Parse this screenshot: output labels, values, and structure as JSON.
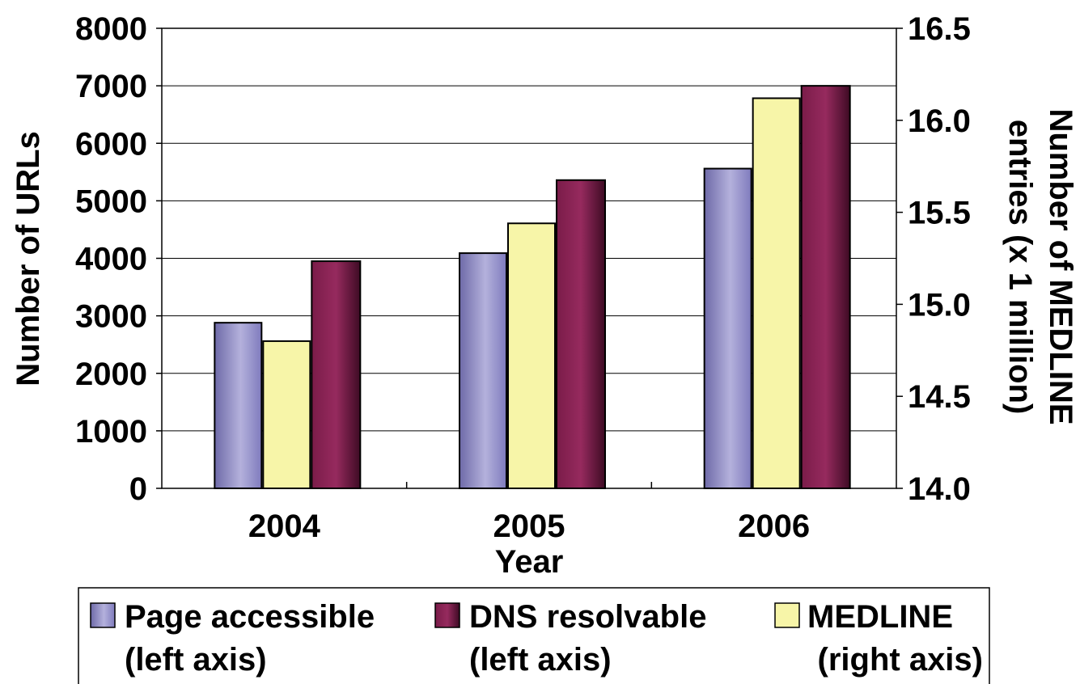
{
  "chart_data": {
    "type": "bar",
    "categories": [
      "2004",
      "2005",
      "2006"
    ],
    "xlabel": "Year",
    "ylabel": "Number of URLs",
    "ylabel_right": [
      "Number of MEDLINE",
      "entries (x 1 million)"
    ],
    "ylim": [
      0,
      8000
    ],
    "ylim_right": [
      14.0,
      16.5
    ],
    "yticks": [
      "0",
      "1000",
      "2000",
      "3000",
      "4000",
      "5000",
      "6000",
      "7000",
      "8000"
    ],
    "yticks_right": [
      "14.0",
      "14.5",
      "15.0",
      "15.5",
      "16.0",
      "16.5"
    ],
    "grid": true,
    "legend_position": "bottom",
    "series": [
      {
        "key": "page",
        "name": "Page accessible",
        "axis": "left",
        "values": [
          2880,
          4090,
          5560
        ],
        "color": "#9a96cc",
        "legend": [
          "Page accessible",
          "(left axis)"
        ]
      },
      {
        "key": "medline",
        "name": "MEDLINE",
        "axis": "right",
        "values": [
          14.8,
          15.44,
          16.12
        ],
        "color": "#f7f5a8",
        "legend": [
          "MEDLINE",
          "(right axis)"
        ]
      },
      {
        "key": "dns",
        "name": "DNS resolvable",
        "axis": "left",
        "values": [
          3950,
          5360,
          7000
        ],
        "color": "#8e2256",
        "legend": [
          "DNS resolvable",
          "(left axis)"
        ]
      }
    ]
  }
}
